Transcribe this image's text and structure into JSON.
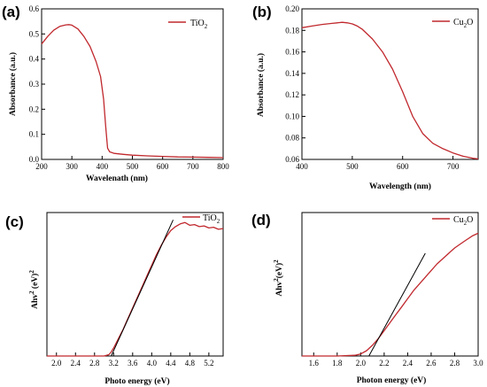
{
  "figure": {
    "panels": [
      {
        "letter": "(a)",
        "legend": "TiO",
        "legend_sub": "2",
        "xlabel": "Wavelenath (nm)",
        "ylabel": "Absorbance (a.u.)"
      },
      {
        "letter": "(b)",
        "legend": "Cu",
        "legend_sub": "2",
        "legend_tail": "O",
        "xlabel": "Wavelength (nm)",
        "ylabel": "Absorbance (a.u.)"
      },
      {
        "letter": "(c)",
        "legend": "TiO",
        "legend_sub": "2",
        "xlabel": "Photo energy (eV)",
        "ylabel_main": "Ahv",
        "ylabel_sup": "2",
        "ylabel_tail": " (eV)",
        "ylabel_sup2": "2"
      },
      {
        "letter": "(d)",
        "legend": "Cu",
        "legend_sub": "2",
        "legend_tail": "O",
        "xlabel": "Photon energy (eV)",
        "ylabel_main": "Ahv",
        "ylabel_sup": "2",
        "ylabel_tail": "(eV)",
        "ylabel_sup2": "2"
      }
    ]
  },
  "colors": {
    "series": "#c0282d",
    "fit": "#000000"
  },
  "chart_data": [
    {
      "type": "line",
      "xlim": [
        200,
        800
      ],
      "ylim": [
        0.0,
        0.6
      ],
      "xticks": [
        "200",
        "300",
        "400",
        "500",
        "600",
        "700",
        "800"
      ],
      "yticks": [
        "0.0",
        "0.1",
        "0.2",
        "0.3",
        "0.4",
        "0.5",
        "0.6"
      ],
      "x": [
        200,
        220,
        240,
        260,
        280,
        290,
        300,
        320,
        340,
        360,
        380,
        395,
        405,
        412,
        418,
        425,
        440,
        470,
        500,
        550,
        600,
        650,
        700,
        750,
        800
      ],
      "y": [
        0.46,
        0.49,
        0.515,
        0.53,
        0.536,
        0.537,
        0.535,
        0.52,
        0.49,
        0.45,
        0.39,
        0.33,
        0.24,
        0.13,
        0.045,
        0.03,
        0.024,
        0.02,
        0.017,
        0.014,
        0.012,
        0.01,
        0.009,
        0.008,
        0.007
      ]
    },
    {
      "type": "line",
      "xlim": [
        400,
        750
      ],
      "ylim": [
        0.06,
        0.2
      ],
      "xticks": [
        "400",
        "500",
        "600",
        "700"
      ],
      "yticks": [
        "0.06",
        "0.08",
        "0.10",
        "0.12",
        "0.14",
        "0.16",
        "0.18",
        "0.20"
      ],
      "x": [
        400,
        420,
        440,
        460,
        470,
        480,
        490,
        500,
        510,
        520,
        540,
        560,
        580,
        600,
        620,
        640,
        660,
        680,
        700,
        720,
        740,
        750
      ],
      "y": [
        0.1825,
        0.184,
        0.1855,
        0.1865,
        0.187,
        0.1875,
        0.187,
        0.186,
        0.184,
        0.181,
        0.172,
        0.16,
        0.144,
        0.123,
        0.1,
        0.084,
        0.075,
        0.07,
        0.066,
        0.063,
        0.061,
        0.0605
      ]
    },
    {
      "type": "line",
      "xlim": [
        1.8,
        5.5
      ],
      "xticks": [
        "2.0",
        "2.4",
        "2.8",
        "3.2",
        "3.6",
        "4.0",
        "4.4",
        "4.8",
        "5.2"
      ],
      "x": [
        1.8,
        2.4,
        2.8,
        3.0,
        3.1,
        3.15,
        3.2,
        3.3,
        3.4,
        3.5,
        3.6,
        3.7,
        3.8,
        3.9,
        4.0,
        4.1,
        4.2,
        4.3,
        4.4,
        4.5,
        4.6,
        4.7,
        4.8,
        4.9,
        5.0,
        5.1,
        5.2,
        5.3,
        5.4,
        5.5
      ],
      "y": [
        0,
        0,
        0,
        0,
        0.01,
        0.03,
        0.06,
        0.13,
        0.2,
        0.28,
        0.36,
        0.44,
        0.52,
        0.6,
        0.68,
        0.76,
        0.83,
        0.89,
        0.94,
        0.97,
        0.99,
        1.0,
        0.98,
        0.985,
        0.97,
        0.975,
        0.96,
        0.965,
        0.95,
        0.955
      ],
      "fit": {
        "x": [
          3.15,
          4.45
        ],
        "y": [
          0.0,
          1.02
        ]
      }
    },
    {
      "type": "line",
      "xlim": [
        1.5,
        3.0
      ],
      "xticks": [
        "1.6",
        "1.8",
        "2.0",
        "2.2",
        "2.4",
        "2.6",
        "2.8",
        "3.0"
      ],
      "x": [
        1.5,
        1.8,
        1.95,
        2.0,
        2.05,
        2.1,
        2.15,
        2.2,
        2.25,
        2.3,
        2.35,
        2.4,
        2.45,
        2.5,
        2.55,
        2.6,
        2.65,
        2.7,
        2.75,
        2.8,
        2.85,
        2.9,
        2.95,
        3.0
      ],
      "y": [
        0,
        0,
        0.005,
        0.015,
        0.04,
        0.08,
        0.13,
        0.19,
        0.25,
        0.31,
        0.37,
        0.43,
        0.49,
        0.54,
        0.59,
        0.64,
        0.69,
        0.73,
        0.77,
        0.81,
        0.84,
        0.87,
        0.9,
        0.92
      ],
      "fit": {
        "x": [
          2.07,
          2.55
        ],
        "y": [
          0.0,
          0.77
        ]
      }
    }
  ]
}
